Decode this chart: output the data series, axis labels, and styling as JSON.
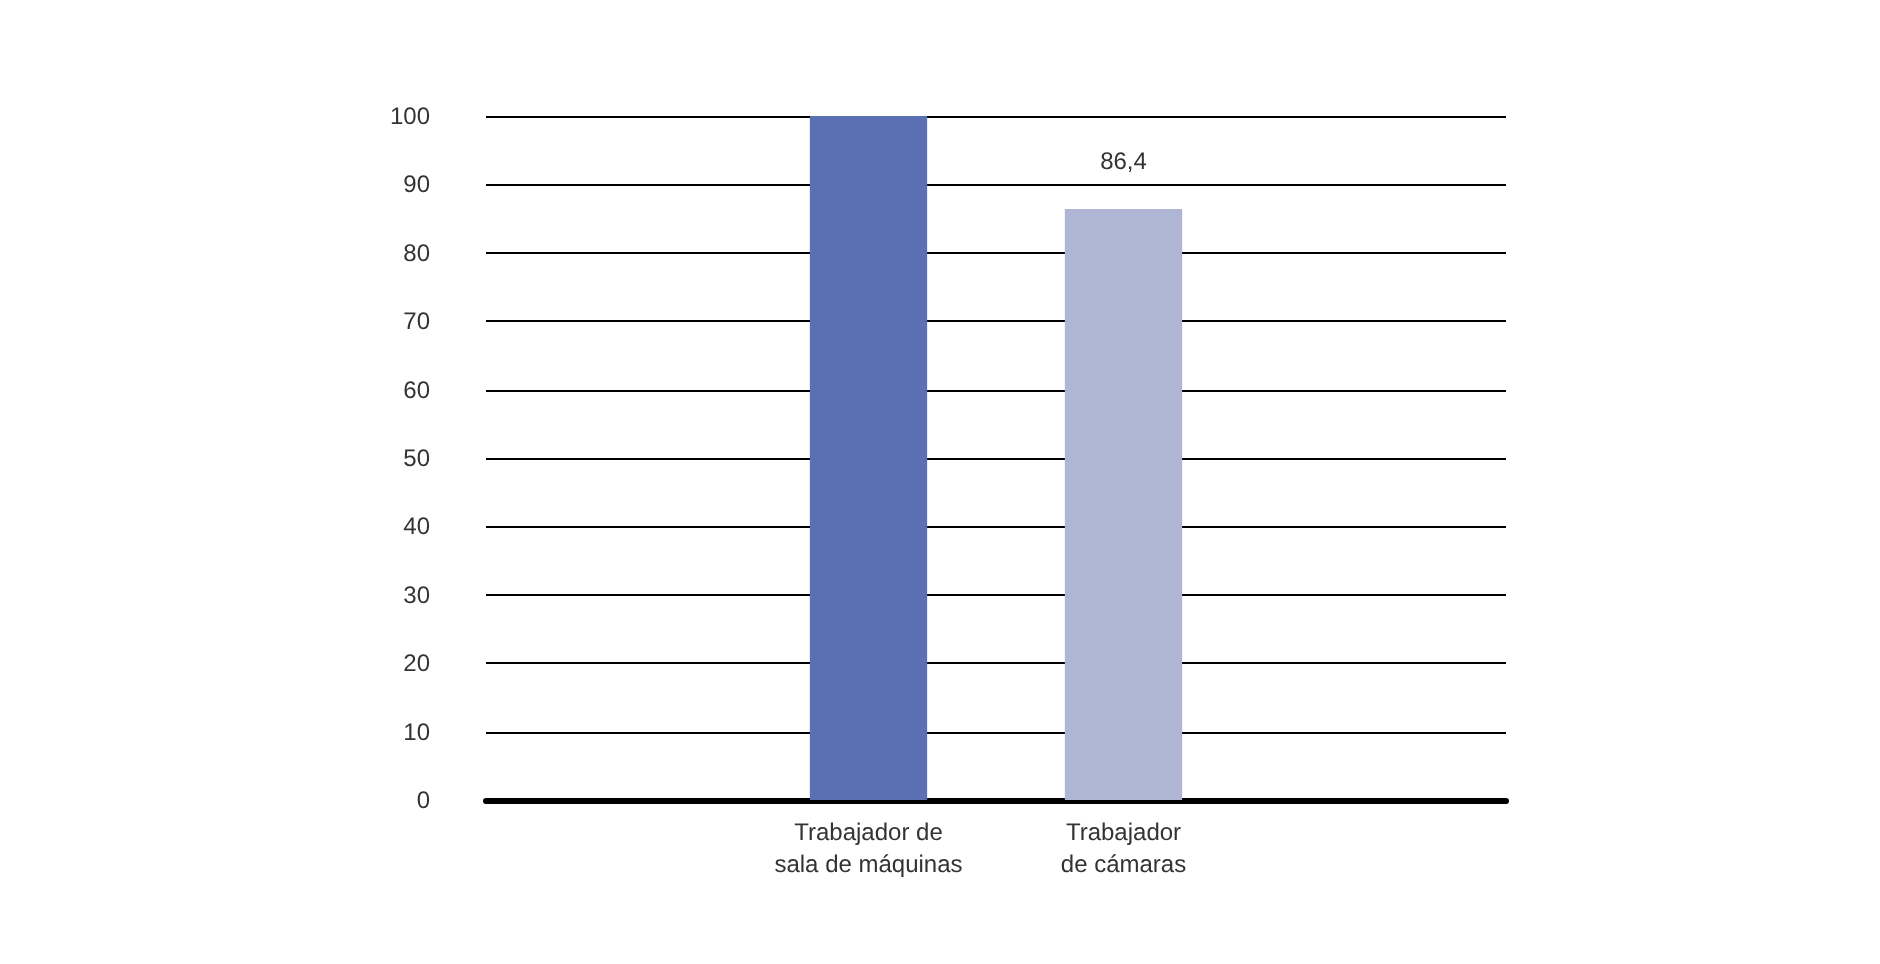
{
  "chart_data": {
    "type": "bar",
    "categories": [
      null,
      "Trabajador de\nsala de máquinas",
      "Trabajador\nde cámaras",
      null
    ],
    "values": [
      null,
      100,
      86.4,
      null
    ],
    "colors": [
      "#5a70b3",
      "#5a70b3",
      "#aeb5d5",
      "#aeb5d5"
    ],
    "value_labels": [
      null,
      null,
      "86,4",
      null
    ],
    "ylim": [
      0,
      100
    ],
    "yticks": [
      0,
      10,
      20,
      30,
      40,
      50,
      60,
      70,
      80,
      90,
      100
    ],
    "grid": "y"
  }
}
